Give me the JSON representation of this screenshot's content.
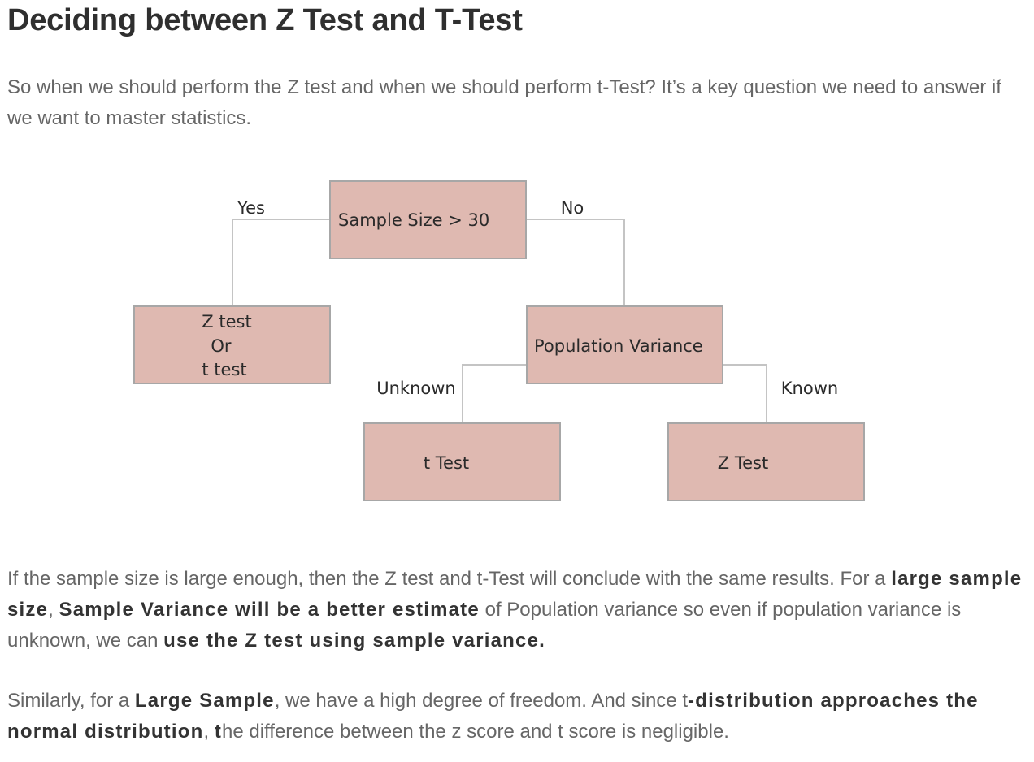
{
  "heading": "Deciding between Z Test and T-Test",
  "intro": "So when we should perform the Z test and when we should perform t-Test? It’s a key question we need to answer if we want to master statistics.",
  "diagram": {
    "root": "Sample Size > 30",
    "yes_label": "Yes",
    "no_label": "No",
    "left_leaf": [
      "Z test",
      "Or",
      "t test"
    ],
    "middle": "Population Variance",
    "unknown_label": "Unknown",
    "known_label": "Known",
    "t_leaf": "t Test",
    "z_leaf": "Z Test"
  },
  "para2": {
    "a": "If the sample size is large enough, then the Z test and t-Test will conclude with the same results. For a ",
    "b1": "large sample size",
    "c": ", ",
    "b2": "Sample Variance will be a better estimate",
    "d": " of Population variance so even if population variance is unknown, we can ",
    "b3": "use the Z test using sample variance."
  },
  "para3": {
    "a": "Similarly, for a ",
    "b1": "Large Sample",
    "c": ", we have a high degree of freedom. And since t",
    "b2": "-distribution approaches the normal distribution",
    "d": ", ",
    "b3": "t",
    "e": "he difference between the z score and t score is negligible."
  }
}
